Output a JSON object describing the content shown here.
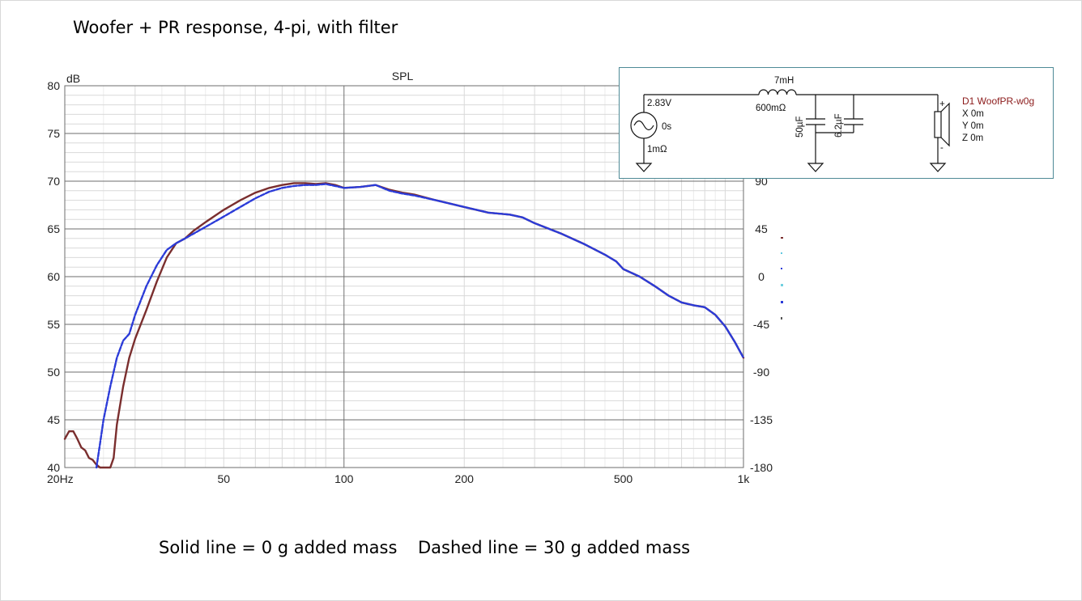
{
  "slide": {
    "title": "Woofer + PR response, 4-pi, with filter",
    "caption_solid": "Solid line = 0 g added mass",
    "caption_dashed": "Dashed line = 30 g added mass"
  },
  "chart_data": {
    "type": "line",
    "title": "SPL",
    "ylabel": "dB",
    "x_scale": "log",
    "xlim": [
      20,
      1000
    ],
    "ylim": [
      40,
      80
    ],
    "x_tick_labels": [
      {
        "value": 20,
        "label": "20Hz"
      },
      {
        "value": 50,
        "label": "50"
      },
      {
        "value": 100,
        "label": "100"
      },
      {
        "value": 200,
        "label": "200"
      },
      {
        "value": 500,
        "label": "500"
      },
      {
        "value": 1000,
        "label": "1k"
      }
    ],
    "y_ticks": [
      40,
      45,
      50,
      55,
      60,
      65,
      70,
      75,
      80
    ],
    "y2_tick_labels": [
      {
        "value": 70,
        "label": "90"
      },
      {
        "value": 65,
        "label": "45"
      },
      {
        "value": 60,
        "label": "0"
      },
      {
        "value": 55,
        "label": "-45"
      },
      {
        "value": 50,
        "label": "-90"
      },
      {
        "value": 45,
        "label": "-135"
      },
      {
        "value": 40,
        "label": "-180"
      }
    ],
    "grid": true,
    "legend": "none",
    "series": [
      {
        "style": "solid",
        "color": "#7a2e2e",
        "x": [
          20,
          20.5,
          21,
          21.5,
          22,
          22.5,
          23,
          23.5,
          24,
          24.5,
          26,
          26.5,
          27,
          28,
          29,
          30,
          32,
          34,
          36,
          38,
          40,
          42,
          45,
          50,
          55,
          60,
          65,
          70,
          75,
          80,
          85,
          90,
          95,
          100,
          110,
          120,
          130,
          140,
          150,
          170,
          200,
          230,
          260,
          280,
          300,
          350,
          400,
          450,
          480,
          500,
          550,
          600,
          650,
          700,
          750,
          800,
          850,
          900,
          950,
          1000
        ],
        "y": [
          43.0,
          43.8,
          43.8,
          43.0,
          42.1,
          41.8,
          41.0,
          40.8,
          40.3,
          39.5,
          39.5,
          41.0,
          44.5,
          48.5,
          51.5,
          53.5,
          56.5,
          59.5,
          62.0,
          63.5,
          64.0,
          64.8,
          65.7,
          67.0,
          68.0,
          68.8,
          69.3,
          69.6,
          69.8,
          69.8,
          69.7,
          69.8,
          69.6,
          69.3,
          69.4,
          69.6,
          69.1,
          68.8,
          68.6,
          68.0,
          67.3,
          66.7,
          66.5,
          66.2,
          65.6,
          64.5,
          63.4,
          62.3,
          61.6,
          60.8,
          60.0,
          59.0,
          58.0,
          57.3,
          57.0,
          56.8,
          56.0,
          54.8,
          53.2,
          51.5
        ]
      },
      {
        "style": "dashed",
        "color": "#2b3bd8",
        "x": [
          24,
          24.5,
          25,
          26,
          27,
          28,
          29,
          30,
          32,
          34,
          36,
          38,
          40,
          42,
          45,
          50,
          55,
          60,
          65,
          70,
          75,
          80,
          85,
          90,
          95,
          100,
          110,
          120,
          130,
          140,
          150,
          170,
          200,
          230,
          260,
          280,
          300,
          350,
          400,
          450,
          480,
          500,
          550,
          600,
          650,
          700,
          750,
          800,
          850,
          900,
          950,
          1000
        ],
        "y": [
          40.0,
          42.5,
          45.0,
          48.5,
          51.5,
          53.3,
          54.0,
          56.0,
          59.0,
          61.2,
          62.8,
          63.5,
          64.0,
          64.5,
          65.2,
          66.3,
          67.3,
          68.2,
          68.9,
          69.3,
          69.5,
          69.6,
          69.6,
          69.7,
          69.5,
          69.3,
          69.4,
          69.6,
          69.0,
          68.7,
          68.5,
          68.0,
          67.3,
          66.7,
          66.5,
          66.2,
          65.6,
          64.5,
          63.4,
          62.3,
          61.6,
          60.8,
          60.0,
          59.0,
          58.0,
          57.3,
          57.0,
          56.8,
          56.0,
          54.8,
          53.2,
          51.5
        ]
      }
    ]
  },
  "schematic": {
    "source_voltage": "2.83V",
    "source_delay": "0s",
    "source_resistance": "1mΩ",
    "inductor_value": "7mH",
    "inductor_resistance": "600mΩ",
    "cap1_value": "50µF",
    "cap2_value": "6.2µF",
    "driver_name": "D1 WoofPR-w0g",
    "driver_x": "X 0m",
    "driver_y": "Y 0m",
    "driver_z": "Z 0m",
    "plus_mark": "+",
    "minus_mark": "-"
  },
  "colors": {
    "solid_series": "#7a2e2e",
    "dashed_series": "#2b3bd8",
    "grid_major": "#6e6e6e",
    "grid_minor": "#d9d9d9",
    "driver_label": "#8b1a1a",
    "schematic_border": "#4e8a96"
  }
}
